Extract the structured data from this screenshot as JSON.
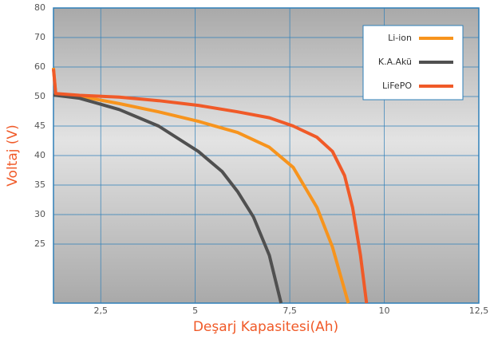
{
  "chart_data": {
    "type": "line",
    "x_label": "Deşarj Kapasitesi(Ah)",
    "y_label": "Voltaj (V)",
    "xlim": [
      1.25,
      12.5
    ],
    "xticks": [
      {
        "value": 2.5,
        "label": "2,5"
      },
      5,
      {
        "value": 7.5,
        "label": "7,5"
      },
      10,
      {
        "value": 12.5,
        "label": "12,5"
      }
    ],
    "ylim": [
      15,
      80
    ],
    "yticks": [
      80,
      70,
      60,
      50,
      45,
      40,
      35,
      30,
      25
    ],
    "grid": true,
    "legend": "upper right",
    "series": [
      {
        "name": "Li-ion",
        "color": "#f7941d",
        "x": [
          1.25,
          1.31,
          1.94,
          2.99,
          4.03,
          5.08,
          6.12,
          6.96,
          7.59,
          8.22,
          8.63,
          9.05
        ],
        "values": [
          59.7,
          50.8,
          50.1,
          48.8,
          47.4,
          45.8,
          43.9,
          41.4,
          38.0,
          31.2,
          24.5,
          15
        ]
      },
      {
        "name": "K.A.Akü",
        "color": "#505050",
        "x": [
          1.25,
          1.94,
          2.99,
          4.03,
          5.08,
          5.71,
          6.12,
          6.54,
          6.96,
          7.27
        ],
        "values": [
          50.5,
          49.7,
          47.8,
          45.0,
          40.7,
          37.3,
          33.9,
          29.6,
          23.1,
          15
        ]
      },
      {
        "name": "LiFePO",
        "color": "#f05a28",
        "x": [
          1.25,
          1.31,
          1.94,
          2.99,
          4.03,
          5.08,
          6.12,
          6.96,
          7.59,
          8.22,
          8.63,
          8.95,
          9.16,
          9.37,
          9.53
        ],
        "values": [
          59.3,
          51.0,
          50.4,
          49.9,
          49.3,
          48.5,
          47.4,
          46.4,
          45.0,
          43.1,
          40.7,
          36.6,
          31.2,
          23.1,
          15
        ]
      }
    ]
  }
}
